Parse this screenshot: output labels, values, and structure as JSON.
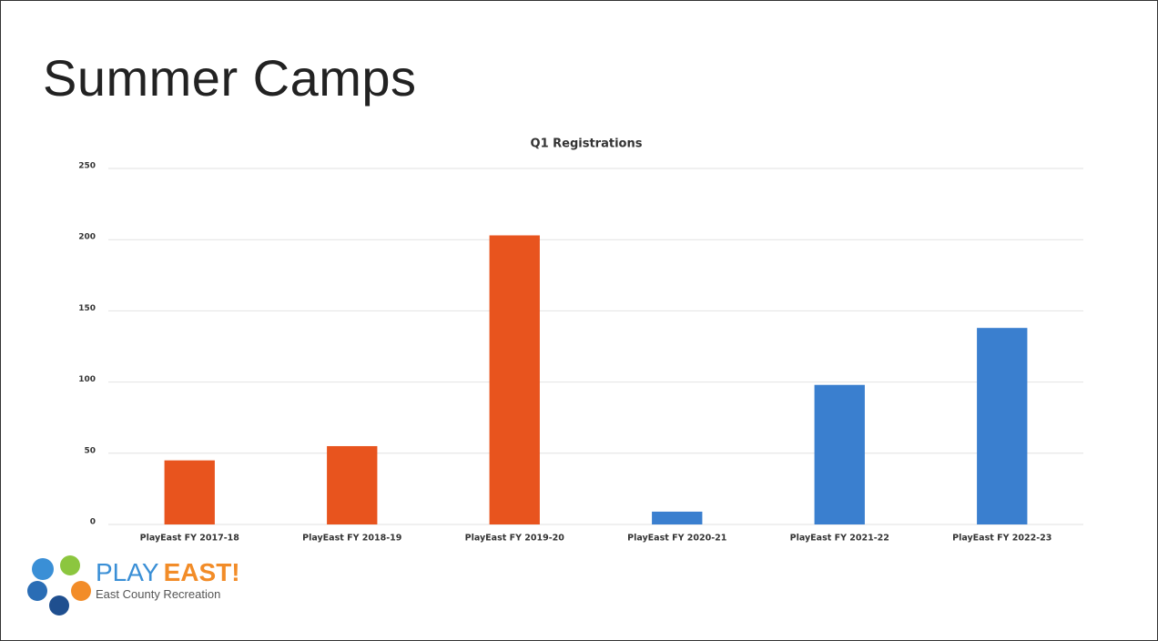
{
  "slide_title": "Summer Camps",
  "chart_data": {
    "type": "bar",
    "title": "Q1 Registrations",
    "categories": [
      "PlayEast FY 2017-18",
      "PlayEast FY 2018-19",
      "PlayEast FY 2019-20",
      "PlayEast FY 2020-21",
      "PlayEast FY 2021-22",
      "PlayEast FY 2022-23"
    ],
    "values": [
      45,
      55,
      203,
      9,
      98,
      138
    ],
    "colors": [
      "#e8541e",
      "#e8541e",
      "#e8541e",
      "#3a7fcf",
      "#3a7fcf",
      "#3a7fcf"
    ],
    "ylim": [
      0,
      250
    ],
    "yticks": [
      0,
      50,
      100,
      150,
      200,
      250
    ],
    "grid": true
  },
  "logo": {
    "play": "PLAY",
    "east": "EAST!",
    "tagline": "East County Recreation"
  }
}
